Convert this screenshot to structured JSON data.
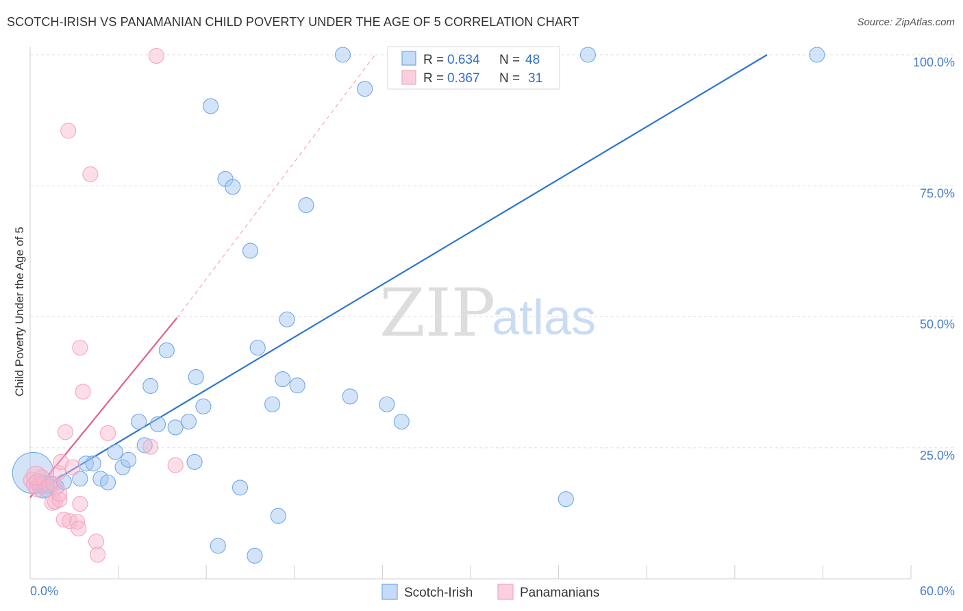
{
  "header": {
    "title": "SCOTCH-IRISH VS PANAMANIAN CHILD POVERTY UNDER THE AGE OF 5 CORRELATION CHART",
    "source": "Source: ZipAtlas.com"
  },
  "watermark": {
    "zip": "ZIP",
    "atlas": "atlas"
  },
  "stats": [
    {
      "r_label": "R =",
      "r": "0.634",
      "n_label": "N =",
      "n": "48",
      "color": "#6fa8e8"
    },
    {
      "r_label": "R =",
      "r": "0.367",
      "n_label": "N =",
      "n": "31",
      "color": "#f4a6bf"
    }
  ],
  "chart_data": {
    "type": "scatter",
    "title": "SCOTCH-IRISH VS PANAMANIAN CHILD POVERTY UNDER THE AGE OF 5 CORRELATION CHART",
    "xlabel": "",
    "ylabel": "Child Poverty Under the Age of 5",
    "xlim": [
      0,
      60
    ],
    "ylim": [
      0,
      100
    ],
    "x_tick_labels": [
      "0.0%",
      "60.0%"
    ],
    "y_ticks": [
      25,
      50,
      75,
      100
    ],
    "y_tick_labels": [
      "25.0%",
      "50.0%",
      "75.0%",
      "100.0%"
    ],
    "grid": true,
    "legend_position": "bottom-center",
    "series": [
      {
        "name": "Scotch-Irish",
        "color": "#6fa8e8",
        "line_color": "#2e75d0",
        "trend": {
          "x": [
            0.3,
            50.2
          ],
          "y": [
            16.5,
            100
          ]
        },
        "points": [
          [
            0.2,
            20.2
          ],
          [
            0.5,
            18.5
          ],
          [
            0.8,
            17.9
          ],
          [
            1.1,
            17.2
          ],
          [
            1.4,
            18.0
          ],
          [
            1.8,
            17.5
          ],
          [
            2.3,
            18.5
          ],
          [
            3.4,
            19.1
          ],
          [
            3.8,
            22.0
          ],
          [
            4.3,
            22.0
          ],
          [
            4.8,
            19.1
          ],
          [
            5.3,
            18.4
          ],
          [
            5.8,
            24.2
          ],
          [
            6.3,
            21.3
          ],
          [
            6.7,
            22.7
          ],
          [
            7.4,
            30.0
          ],
          [
            7.8,
            25.5
          ],
          [
            8.2,
            36.8
          ],
          [
            8.7,
            29.5
          ],
          [
            9.3,
            43.6
          ],
          [
            9.9,
            28.9
          ],
          [
            10.8,
            30.0
          ],
          [
            11.2,
            22.3
          ],
          [
            11.3,
            38.5
          ],
          [
            11.8,
            32.9
          ],
          [
            12.3,
            90.2
          ],
          [
            12.8,
            6.3
          ],
          [
            13.3,
            76.3
          ],
          [
            13.8,
            74.8
          ],
          [
            14.3,
            17.4
          ],
          [
            15.0,
            62.6
          ],
          [
            15.3,
            4.4
          ],
          [
            15.5,
            44.1
          ],
          [
            16.5,
            33.3
          ],
          [
            16.9,
            12.0
          ],
          [
            17.2,
            38.1
          ],
          [
            17.5,
            49.5
          ],
          [
            18.2,
            36.9
          ],
          [
            18.8,
            71.3
          ],
          [
            21.3,
            100.0
          ],
          [
            21.8,
            34.8
          ],
          [
            22.8,
            93.5
          ],
          [
            24.3,
            33.3
          ],
          [
            25.3,
            30.0
          ],
          [
            36.5,
            15.2
          ],
          [
            38.0,
            100.0
          ],
          [
            53.6,
            100.0
          ],
          [
            0.9,
            17.5
          ]
        ],
        "sizes": [
          30,
          12,
          12,
          12,
          12,
          11,
          11,
          11,
          11,
          11,
          11,
          11,
          11,
          11,
          11,
          11,
          11,
          11,
          11,
          11,
          11,
          11,
          11,
          11,
          11,
          11,
          11,
          11,
          11,
          11,
          11,
          11,
          11,
          11,
          11,
          11,
          11,
          11,
          11,
          11,
          11,
          11,
          11,
          11,
          11,
          11,
          11,
          16
        ]
      },
      {
        "name": "Panamanians",
        "color": "#f4a6bf",
        "line_color": "#e0608a",
        "trend": {
          "x": [
            0.0,
            10.0
          ],
          "y": [
            15.5,
            49.8
          ]
        },
        "trend_dashed": {
          "x": [
            10.0,
            23.5
          ],
          "y": [
            49.8,
            100
          ]
        },
        "points": [
          [
            0.1,
            18.8
          ],
          [
            0.3,
            18.0
          ],
          [
            0.5,
            17.2
          ],
          [
            0.8,
            19.4
          ],
          [
            1.0,
            18.4
          ],
          [
            1.3,
            17.6
          ],
          [
            1.5,
            14.5
          ],
          [
            1.7,
            14.7
          ],
          [
            1.9,
            20.2
          ],
          [
            1.6,
            18.1
          ],
          [
            2.0,
            15.1
          ],
          [
            2.0,
            16.2
          ],
          [
            2.1,
            22.3
          ],
          [
            2.3,
            11.3
          ],
          [
            2.4,
            28.0
          ],
          [
            2.6,
            85.5
          ],
          [
            2.7,
            11.0
          ],
          [
            2.9,
            21.3
          ],
          [
            3.2,
            10.9
          ],
          [
            3.3,
            9.6
          ],
          [
            3.4,
            44.1
          ],
          [
            3.4,
            14.3
          ],
          [
            3.6,
            35.7
          ],
          [
            4.1,
            77.2
          ],
          [
            4.5,
            7.1
          ],
          [
            4.6,
            4.6
          ],
          [
            5.3,
            27.8
          ],
          [
            8.2,
            25.2
          ],
          [
            8.6,
            99.8
          ],
          [
            9.9,
            21.7
          ],
          [
            0.4,
            19.7
          ]
        ],
        "sizes": [
          12,
          12,
          12,
          11,
          11,
          11,
          11,
          11,
          11,
          11,
          11,
          11,
          11,
          11,
          11,
          11,
          11,
          11,
          11,
          11,
          11,
          11,
          11,
          11,
          11,
          11,
          11,
          11,
          11,
          11,
          14
        ]
      }
    ]
  }
}
